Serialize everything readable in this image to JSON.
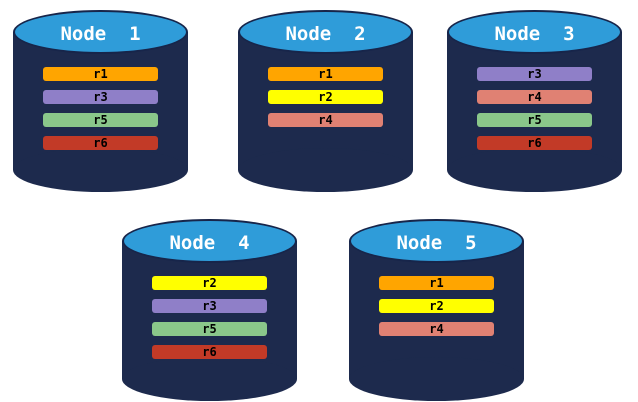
{
  "colors": {
    "background": "#FFFFFF",
    "cylinder_body": "#1D2A4D",
    "cylinder_top": "#2F9CD9",
    "cylinder_top_outline": "#17254A",
    "node_label_color": "#FFFFFF",
    "replica_label_color": "#000000",
    "replicas": {
      "r1": "#FFA500",
      "r2": "#FFFF00",
      "r3": "#8F7FC8",
      "r4": "#E08173",
      "r5": "#8AC78A",
      "r6": "#C23A27"
    }
  },
  "nodes": [
    {
      "label": "Node  1",
      "replicas": [
        "r1",
        "r3",
        "r5",
        "r6"
      ]
    },
    {
      "label": "Node  2",
      "replicas": [
        "r1",
        "r2",
        "r4"
      ]
    },
    {
      "label": "Node  3",
      "replicas": [
        "r3",
        "r4",
        "r5",
        "r6"
      ]
    },
    {
      "label": "Node  4",
      "replicas": [
        "r2",
        "r3",
        "r5",
        "r6"
      ]
    },
    {
      "label": "Node  5",
      "replicas": [
        "r1",
        "r2",
        "r4"
      ]
    }
  ]
}
